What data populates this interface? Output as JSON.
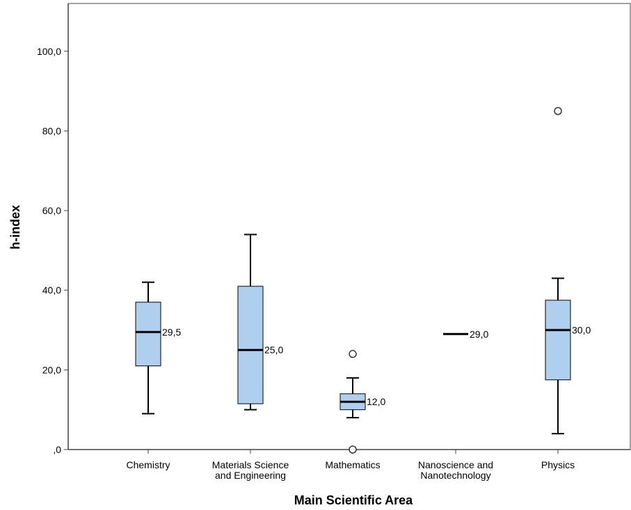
{
  "chart_data": {
    "type": "boxplot",
    "title": "",
    "xlabel": "Main Scientific Area",
    "ylabel": "h-index",
    "ylim": [
      0,
      112
    ],
    "yticks": [
      0,
      20,
      40,
      60,
      80,
      100
    ],
    "ytick_labels": [
      ",0",
      "20,0",
      "40,0",
      "60,0",
      "80,0",
      "100,0"
    ],
    "grid": false,
    "colors": {
      "box_fill": "#aed0ee",
      "stroke": "#000000",
      "axis": "#444444"
    },
    "categories": [
      {
        "name": "Chemistry",
        "label_lines": [
          "Chemistry"
        ],
        "whisker_low": 9,
        "q1": 21,
        "median": 29.5,
        "q3": 37,
        "whisker_high": 42,
        "median_label": "29,5",
        "outliers": []
      },
      {
        "name": "Materials Science and Engineering",
        "label_lines": [
          "Materials Science",
          "and Engineering"
        ],
        "whisker_low": 10,
        "q1": 11.5,
        "median": 25,
        "q3": 41,
        "whisker_high": 54,
        "median_label": "25,0",
        "outliers": []
      },
      {
        "name": "Mathematics",
        "label_lines": [
          "Mathematics"
        ],
        "whisker_low": 8,
        "q1": 10,
        "median": 12,
        "q3": 14,
        "whisker_high": 18,
        "median_label": "12,0",
        "outliers": [
          24,
          0
        ]
      },
      {
        "name": "Nanoscience and Nanotechnology",
        "label_lines": [
          "Nanoscience and",
          "Nanotechnology"
        ],
        "whisker_low": 29,
        "q1": 29,
        "median": 29,
        "q3": 29,
        "whisker_high": 29,
        "median_label": "29,0",
        "outliers": []
      },
      {
        "name": "Physics",
        "label_lines": [
          "Physics"
        ],
        "whisker_low": 4,
        "q1": 17.5,
        "median": 30,
        "q3": 37.5,
        "whisker_high": 43,
        "median_label": "30,0",
        "outliers": [
          85
        ]
      }
    ]
  }
}
